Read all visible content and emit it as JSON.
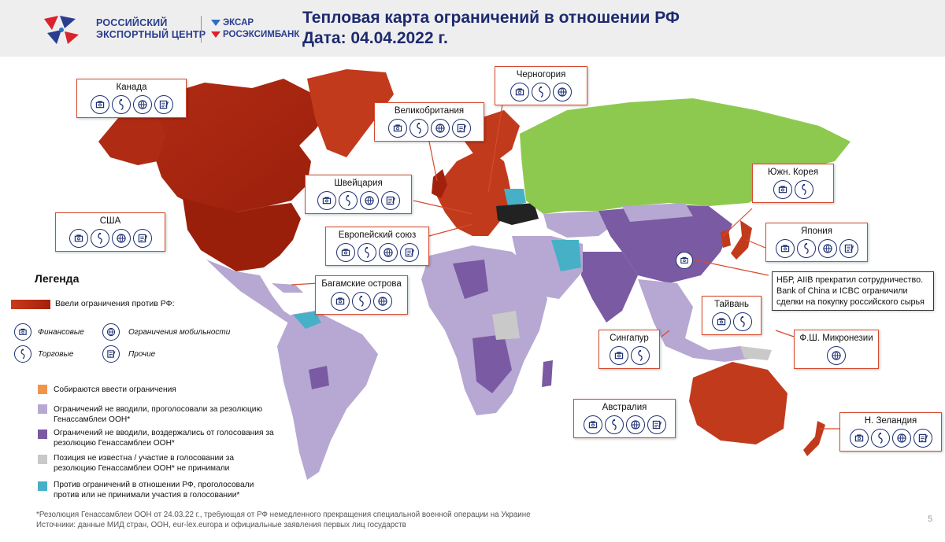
{
  "header": {
    "org_line1": "РОССИЙСКИЙ",
    "org_line2": "ЭКСПОРТНЫЙ ЦЕНТР",
    "partner1": "ЭКСАР",
    "partner2": "РОСЭКСИМБАНК",
    "title_line1": "Тепловая карта ограничений в отношении РФ",
    "title_line2": "Дата: 04.04.2022 г."
  },
  "colors": {
    "restricted": "#c23a1c",
    "restricted_dark": "#a2210c",
    "planning": "#f0944a",
    "voted_for": "#b6a8d2",
    "abstained": "#7a5aa3",
    "unknown": "#c9c9c9",
    "against": "#46b0c6",
    "russia": "#8ec94f",
    "icon_stroke": "#1d2f72"
  },
  "callouts": [
    {
      "name": "Канада",
      "icons": [
        "financial-icon",
        "trade-icon",
        "mobility-icon",
        "other-icon"
      ]
    },
    {
      "name": "США",
      "icons": [
        "financial-icon",
        "trade-icon",
        "mobility-icon",
        "other-icon"
      ]
    },
    {
      "name": "Великобритания",
      "icons": [
        "financial-icon",
        "trade-icon",
        "mobility-icon",
        "other-icon"
      ]
    },
    {
      "name": "Черногория",
      "icons": [
        "financial-icon",
        "trade-icon",
        "mobility-icon"
      ]
    },
    {
      "name": "Швейцария",
      "icons": [
        "financial-icon",
        "trade-icon",
        "mobility-icon",
        "other-icon"
      ]
    },
    {
      "name": "Европейский союз",
      "icons": [
        "financial-icon",
        "trade-icon",
        "mobility-icon",
        "other-icon"
      ]
    },
    {
      "name": "Багамские острова",
      "icons": [
        "financial-icon",
        "trade-icon",
        "mobility-icon"
      ]
    },
    {
      "name": "Южн. Корея",
      "icons": [
        "financial-icon",
        "trade-icon"
      ]
    },
    {
      "name": "Япония",
      "icons": [
        "financial-icon",
        "trade-icon",
        "mobility-icon",
        "other-icon"
      ]
    },
    {
      "name": "Тайвань",
      "icons": [
        "financial-icon",
        "trade-icon"
      ]
    },
    {
      "name": "Сингапур",
      "icons": [
        "financial-icon",
        "trade-icon"
      ]
    },
    {
      "name": "Ф.Ш. Микронезии",
      "icons": [
        "mobility-icon"
      ]
    },
    {
      "name": "Австралия",
      "icons": [
        "financial-icon",
        "trade-icon",
        "mobility-icon",
        "other-icon"
      ]
    },
    {
      "name": "Н. Зеландия",
      "icons": [
        "financial-icon",
        "trade-icon",
        "mobility-icon",
        "other-icon"
      ]
    }
  ],
  "china_note": "НБР, AIIB прекратил сотрудничество. Bank of China и ICBC ограничили сделки на покупку российского сырья",
  "legend": {
    "title": "Легенда",
    "gradient_label": "Ввели ограничения против РФ:",
    "icon_financial": "Финансовые",
    "icon_mobility": "Ограничения мобильности",
    "icon_trade": "Торговые",
    "icon_other": "Прочие",
    "items": [
      {
        "label": "Собираются ввести ограничения",
        "color": "#f0944a"
      },
      {
        "label": "Ограничений не вводили, проголосовали за резолюцию Генассамблеи ООН*",
        "color": "#b6a8d2"
      },
      {
        "label": "Ограничений не вводили, воздержались от голосования за резолюцию Генассамблеи ООН*",
        "color": "#7a5aa3"
      },
      {
        "label": "Позиция не известна / участие в голосовании за резолюцию Генассамблеи ООН* не принимали",
        "color": "#c9c9c9"
      },
      {
        "label": "Против ограничений в отношении РФ, проголосовали против или не принимали участия в голосовании*",
        "color": "#46b0c6"
      }
    ]
  },
  "footnote_line1": "*Резолюция Генассамблеи ООН от 24.03.22 г., требующая от РФ немедленного прекращения специальной военной операции на Украине",
  "footnote_line2": "Источники: данные МИД стран, ООН, eur-lex.europa и официальные заявления первых лиц государств",
  "page_number": "5"
}
